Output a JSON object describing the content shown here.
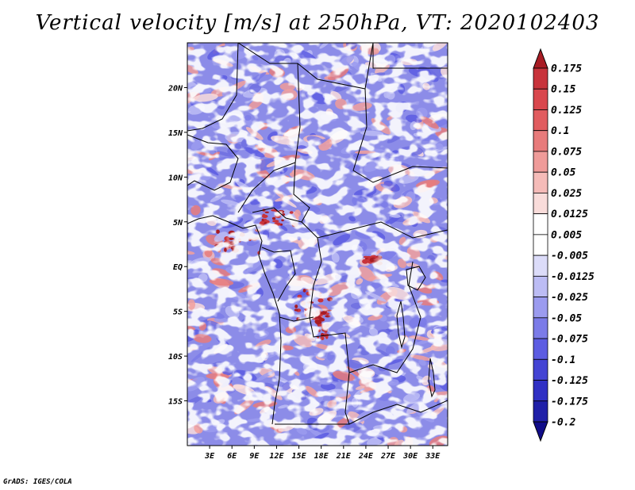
{
  "chart_data": {
    "type": "heatmap",
    "title": "Vertical velocity [m/s] at 250hPa, VT: 2020102403",
    "variable": "Vertical velocity",
    "units": "m/s",
    "level": "250hPa",
    "valid_time": "2020102403",
    "x_ticks": [
      "3E",
      "6E",
      "9E",
      "12E",
      "15E",
      "18E",
      "21E",
      "24E",
      "27E",
      "30E",
      "33E"
    ],
    "x_tick_values": [
      3,
      6,
      9,
      12,
      15,
      18,
      21,
      24,
      27,
      30,
      33
    ],
    "y_ticks": [
      "20N",
      "15N",
      "10N",
      "5N",
      "EQ",
      "5S",
      "10S",
      "15S"
    ],
    "y_tick_values": [
      20,
      15,
      10,
      5,
      0,
      -5,
      -10,
      -15
    ],
    "xlim": [
      0,
      35
    ],
    "ylim": [
      -20,
      25
    ],
    "colorbar": {
      "labels": [
        "0.175",
        "0.15",
        "0.125",
        "0.1",
        "0.075",
        "0.05",
        "0.025",
        "0.0125",
        "0.005",
        "-0.005",
        "-0.0125",
        "-0.025",
        "-0.05",
        "-0.075",
        "-0.1",
        "-0.125",
        "-0.175",
        "-0.2"
      ],
      "colors": [
        "#a81c24",
        "#c8333b",
        "#d9474d",
        "#e15c5f",
        "#e87b7b",
        "#ef9b99",
        "#f5bbb8",
        "#f9dcda",
        "#ffffff",
        "#ffffff",
        "#dcdcf9",
        "#bcbcf4",
        "#9b9bef",
        "#7b7be8",
        "#5c5ce2",
        "#4444d4",
        "#3030c4",
        "#2020a8",
        "#100c88"
      ]
    }
  },
  "footer": "GrADS: IGES/COLA"
}
